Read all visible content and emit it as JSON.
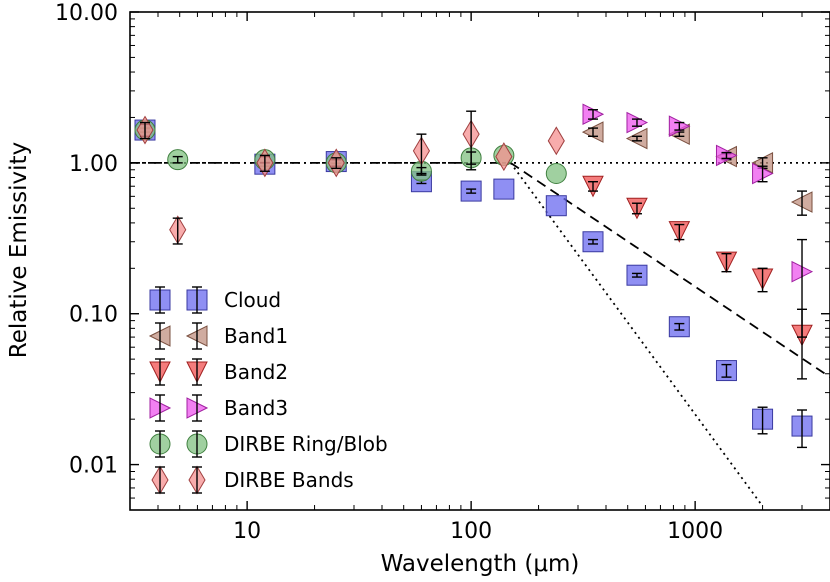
{
  "chart_data": {
    "type": "scatter",
    "xlabel": "Wavelength (μm)",
    "ylabel": "Relative Emissivity",
    "xscale": "log",
    "yscale": "log",
    "xlim": [
      3,
      4000
    ],
    "ylim": [
      0.005,
      10
    ],
    "x_ticks": [
      {
        "value": 10,
        "label": "10"
      },
      {
        "value": 100,
        "label": "100"
      },
      {
        "value": 1000,
        "label": "1000"
      }
    ],
    "y_ticks": [
      {
        "value": 0.01,
        "label": "0.01"
      },
      {
        "value": 0.1,
        "label": "0.10"
      },
      {
        "value": 1,
        "label": "1.00"
      },
      {
        "value": 10,
        "label": "10.00"
      }
    ],
    "grid": false,
    "legend_position": "bottom-left",
    "reference_lines": [
      {
        "style": "dotted",
        "points": [
          [
            3,
            1.0
          ],
          [
            4000,
            1.0
          ]
        ]
      },
      {
        "style": "dashdot",
        "points": [
          [
            3,
            1.0
          ],
          [
            150,
            1.0
          ]
        ]
      },
      {
        "style": "dashed",
        "points": [
          [
            150,
            1.0
          ],
          [
            4000,
            0.038
          ]
        ]
      },
      {
        "style": "dotted",
        "points": [
          [
            150,
            1.0
          ],
          [
            2000,
            0.0053
          ]
        ]
      }
    ],
    "series": [
      {
        "name": "Cloud",
        "marker": "square",
        "color": "#6a6aef",
        "edge": "#3a3aa0",
        "points": [
          {
            "x": 3.5,
            "y": 1.65,
            "err": 0.05
          },
          {
            "x": 12,
            "y": 0.98,
            "err": 0.03
          },
          {
            "x": 25,
            "y": 1.02,
            "err": 0.03
          },
          {
            "x": 60,
            "y": 0.75,
            "err": 0.02
          },
          {
            "x": 100,
            "y": 0.65,
            "err": 0.02
          },
          {
            "x": 140,
            "y": 0.67
          },
          {
            "x": 240,
            "y": 0.52
          },
          {
            "x": 350,
            "y": 0.3,
            "err": 0.01
          },
          {
            "x": 550,
            "y": 0.18,
            "err": 0.005
          },
          {
            "x": 850,
            "y": 0.082,
            "err": 0.004
          },
          {
            "x": 1380,
            "y": 0.042,
            "err": 0.004
          },
          {
            "x": 2000,
            "y": 0.02,
            "err": 0.004
          },
          {
            "x": 3000,
            "y": 0.018,
            "err": 0.005
          }
        ]
      },
      {
        "name": "Band1",
        "marker": "triangle-left",
        "color": "#c09080",
        "edge": "#7a5040",
        "points": [
          {
            "x": 350,
            "y": 1.6,
            "err": 0.1
          },
          {
            "x": 550,
            "y": 1.45,
            "err": 0.05
          },
          {
            "x": 850,
            "y": 1.55,
            "err": 0.05
          },
          {
            "x": 1380,
            "y": 1.1,
            "err": 0.05
          },
          {
            "x": 2000,
            "y": 1.0,
            "err": 0.08
          },
          {
            "x": 3000,
            "y": 0.55,
            "err": 0.1
          }
        ]
      },
      {
        "name": "Band2",
        "marker": "triangle-down",
        "color": "#f05050",
        "edge": "#a02020",
        "points": [
          {
            "x": 350,
            "y": 0.7,
            "err": 0.05
          },
          {
            "x": 550,
            "y": 0.5,
            "err": 0.04
          },
          {
            "x": 850,
            "y": 0.35,
            "err": 0.04
          },
          {
            "x": 1380,
            "y": 0.22,
            "err": 0.03
          },
          {
            "x": 2000,
            "y": 0.17,
            "err": 0.03
          },
          {
            "x": 3000,
            "y": 0.072,
            "err": 0.035
          }
        ]
      },
      {
        "name": "Band3",
        "marker": "triangle-right",
        "color": "#ee55ee",
        "edge": "#a020a0",
        "points": [
          {
            "x": 350,
            "y": 2.1,
            "err": 0.15
          },
          {
            "x": 550,
            "y": 1.85,
            "err": 0.1
          },
          {
            "x": 850,
            "y": 1.75,
            "err": 0.1
          },
          {
            "x": 1380,
            "y": 1.12,
            "err": 0.05
          },
          {
            "x": 2000,
            "y": 0.85,
            "err": 0.1
          },
          {
            "x": 3000,
            "y": 0.19,
            "err": 0.12
          }
        ]
      },
      {
        "name": "DIRBE Ring/Blob",
        "marker": "circle",
        "color": "#80c080",
        "edge": "#408040",
        "points": [
          {
            "x": 3.5,
            "y": 1.65,
            "err": 0.15
          },
          {
            "x": 4.9,
            "y": 1.05,
            "err": 0.05
          },
          {
            "x": 12,
            "y": 1.05,
            "err": 0.05
          },
          {
            "x": 25,
            "y": 1.0,
            "err": 0.05
          },
          {
            "x": 60,
            "y": 0.88,
            "err": 0.05
          },
          {
            "x": 100,
            "y": 1.08,
            "err": 0.1
          },
          {
            "x": 140,
            "y": 1.12
          },
          {
            "x": 240,
            "y": 0.85
          }
        ]
      },
      {
        "name": "DIRBE Bands",
        "marker": "diamond",
        "color": "#f59090",
        "edge": "#a04040",
        "points": [
          {
            "x": 3.5,
            "y": 1.65,
            "err": 0.2
          },
          {
            "x": 4.9,
            "y": 0.36,
            "err": 0.07
          },
          {
            "x": 12,
            "y": 1.0,
            "err": 0.12
          },
          {
            "x": 25,
            "y": 1.0,
            "err": 0.08
          },
          {
            "x": 60,
            "y": 1.2,
            "err": 0.35
          },
          {
            "x": 100,
            "y": 1.55,
            "err": 0.65
          },
          {
            "x": 140,
            "y": 1.1
          },
          {
            "x": 240,
            "y": 1.4
          }
        ]
      }
    ]
  }
}
